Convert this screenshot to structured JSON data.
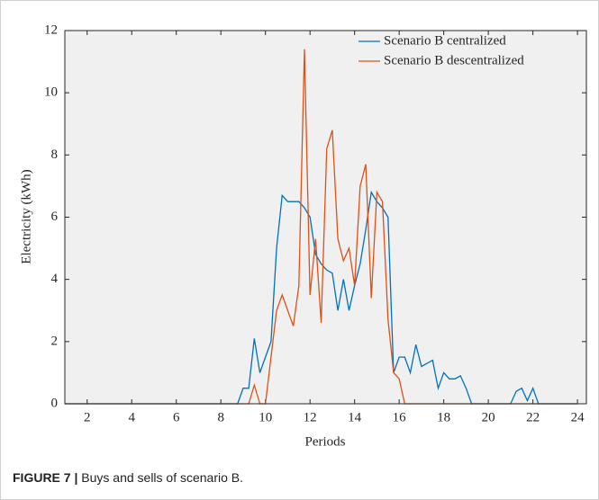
{
  "chart_data": {
    "type": "line",
    "xlabel": "Periods",
    "ylabel": "Electricity (kWh)",
    "x": [
      1,
      8.75,
      9,
      9.25,
      9.5,
      9.75,
      10,
      10.25,
      10.5,
      10.75,
      11,
      11.25,
      11.5,
      11.75,
      12,
      12.25,
      12.5,
      12.75,
      13,
      13.25,
      13.5,
      13.75,
      14,
      14.25,
      14.5,
      14.75,
      15,
      15.25,
      15.5,
      15.75,
      16,
      16.25,
      16.5,
      16.75,
      17,
      17.25,
      17.5,
      17.75,
      18,
      18.25,
      18.5,
      18.75,
      19,
      19.25,
      19.5,
      19.75,
      20,
      20.25,
      20.5,
      20.75,
      21,
      21.25,
      21.5,
      21.75,
      22,
      22.25,
      22.5,
      24
    ],
    "series": [
      {
        "name": "Scenario B centralized",
        "color": "#0072bd",
        "values": [
          0,
          0,
          0.5,
          0.5,
          2.1,
          1.0,
          1.5,
          2.0,
          5.0,
          6.7,
          6.5,
          6.5,
          6.5,
          6.3,
          6.0,
          4.8,
          4.5,
          4.3,
          4.2,
          3.0,
          4.0,
          3.0,
          3.8,
          4.5,
          5.6,
          6.8,
          6.5,
          6.3,
          6.0,
          1.0,
          1.5,
          1.5,
          1.0,
          1.9,
          1.2,
          1.3,
          1.4,
          0.5,
          1.0,
          0.8,
          0.8,
          0.9,
          0.5,
          0,
          0,
          0,
          0,
          0,
          0,
          0,
          0,
          0.4,
          0.5,
          0.1,
          0.5,
          0,
          0,
          0
        ]
      },
      {
        "name": "Scenario B descentralized",
        "color": "#d95319",
        "values": [
          0,
          0,
          0,
          0,
          0.6,
          0,
          0,
          1.5,
          3.0,
          3.5,
          3.0,
          2.5,
          3.8,
          11.4,
          3.5,
          5.3,
          2.6,
          8.2,
          8.8,
          5.3,
          4.6,
          5.0,
          3.8,
          7.0,
          7.7,
          3.4,
          6.8,
          6.5,
          2.7,
          1.0,
          0.8,
          0,
          0,
          0,
          0,
          0,
          0,
          0,
          0,
          0,
          0,
          0,
          0,
          0,
          0,
          0,
          0,
          0,
          0,
          0,
          0,
          0,
          0,
          0,
          0,
          0,
          0,
          0
        ]
      }
    ],
    "xlim": [
      1,
      24.4
    ],
    "xticks": [
      2,
      4,
      6,
      8,
      10,
      12,
      14,
      16,
      18,
      20,
      22,
      24
    ],
    "ylim": [
      0,
      12
    ],
    "yticks": [
      0,
      2,
      4,
      6,
      8,
      10,
      12
    ],
    "legend": "upper right",
    "background": "#f0f0f0"
  },
  "caption": {
    "label": "FIGURE 7 |",
    "text": "Buys and sells of scenario B."
  }
}
